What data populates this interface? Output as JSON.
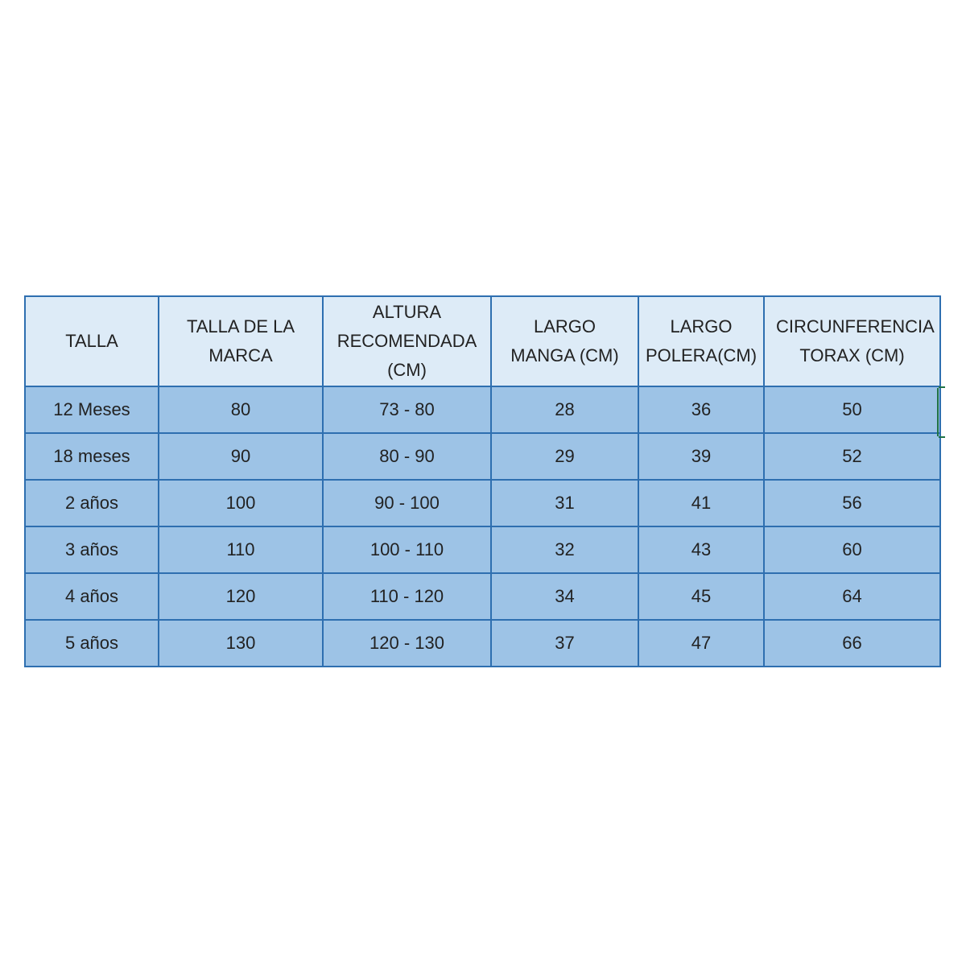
{
  "table": {
    "headers": [
      "TALLA",
      "TALLA DE LA MARCA",
      "ALTURA RECOMENDADA (CM)",
      "LARGO MANGA (CM)",
      "LARGO POLERA(CM)",
      "CIRCUNFERENCIA TORAX (CM)"
    ],
    "rows": [
      [
        "12 Meses",
        "80",
        "73 - 80",
        "28",
        "36",
        "50"
      ],
      [
        "18 meses",
        "90",
        "80 - 90",
        "29",
        "39",
        "52"
      ],
      [
        "2 años",
        "100",
        "90 - 100",
        "31",
        "41",
        "56"
      ],
      [
        "3 años",
        "110",
        "100 - 110",
        "32",
        "43",
        "60"
      ],
      [
        "4 años",
        "120",
        "110 - 120",
        "34",
        "45",
        "64"
      ],
      [
        "5 años",
        "130",
        "120 - 130",
        "37",
        "47",
        "66"
      ]
    ]
  },
  "colors": {
    "header_bg": "#ddebf7",
    "body_bg": "#9dc3e6",
    "border": "#2e6fb0"
  }
}
